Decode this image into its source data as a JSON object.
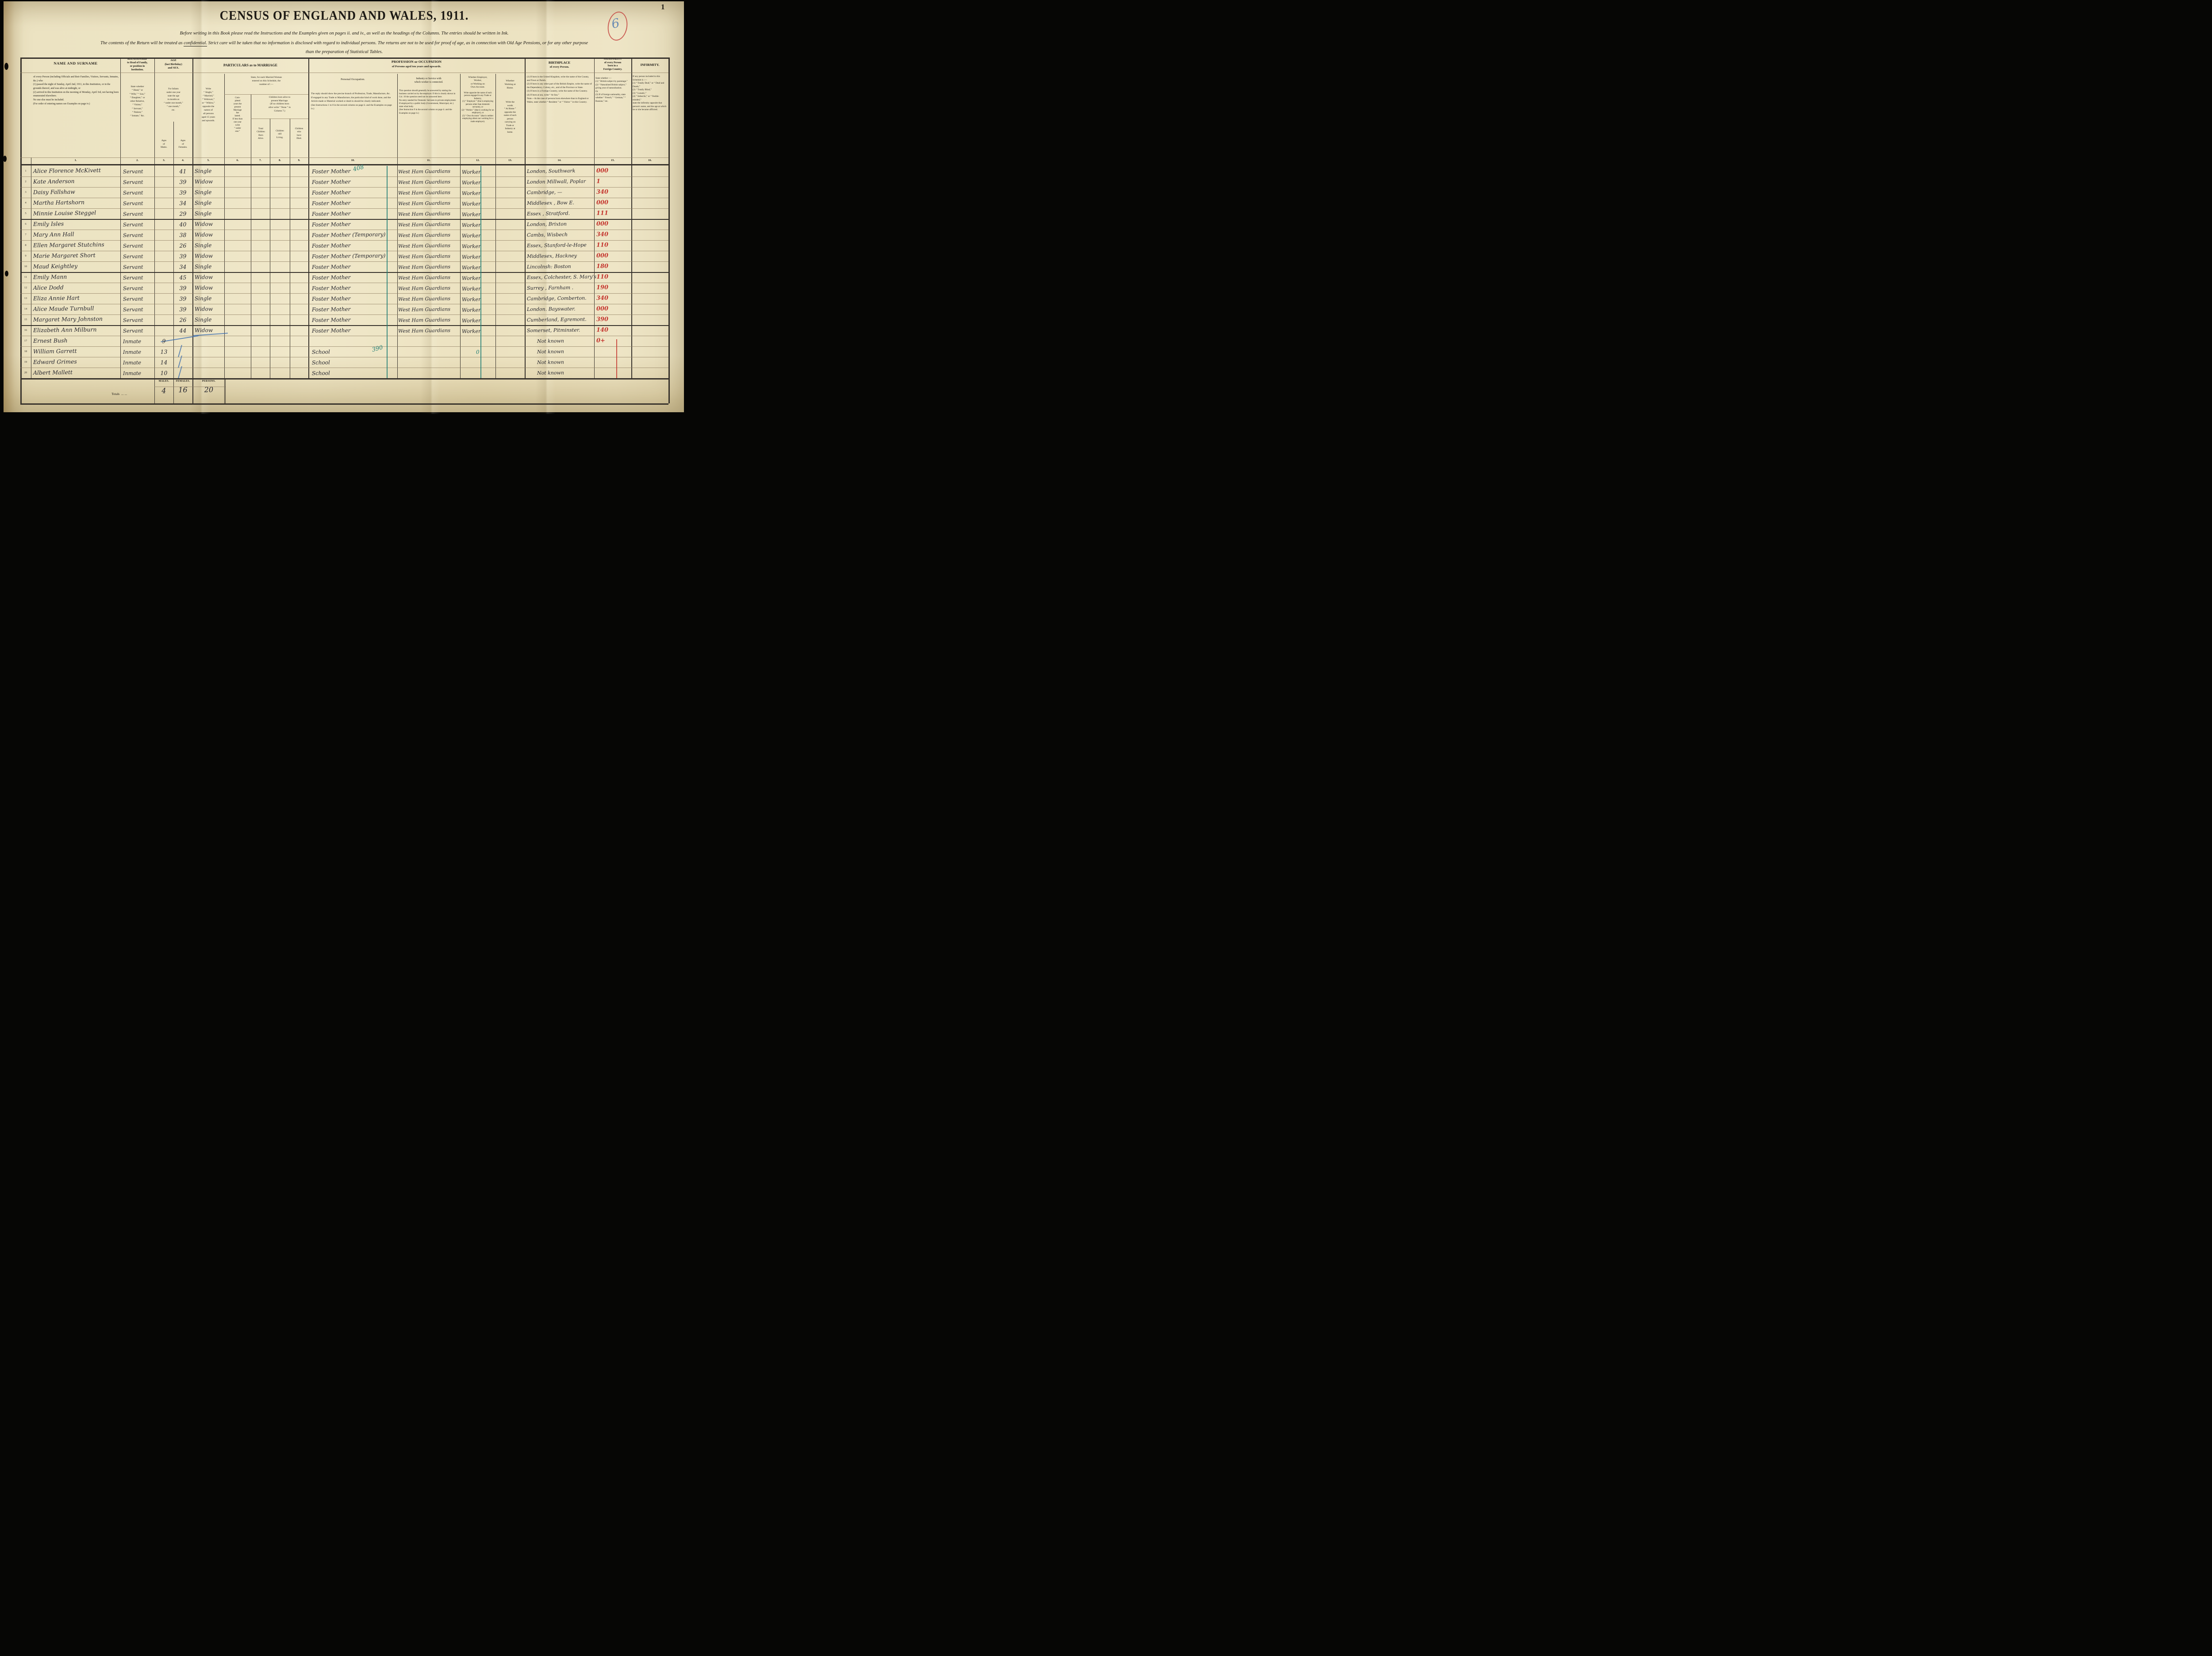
{
  "page": {
    "number": "1"
  },
  "title": "CENSUS  OF  ENGLAND  AND  WALES,  1911.",
  "instructions": {
    "line1": "Before writing in this Book please read the Instructions and the Examples given on pages ii. and iv., as well as the headings of the Columns.   The entries should be written in Ink.",
    "line2_pre": "The contents of the Return will be treated as ",
    "line2_confidential": "confidential.",
    "line2_post": "  Strict care will be taken that no information is disclosed with regard to individual persons.   The returns are not to be used for proof of age, as in connection with Old Age Pensions, or for any other purpose",
    "line3": "than the preparation of Statistical Tables."
  },
  "stamp": {
    "value": "6"
  },
  "colors": {
    "red_ink": "#c4352e",
    "green_ink": "#1f7e74",
    "blue_ink": "#3f6fae",
    "black_ink": "#26262e"
  },
  "header": {
    "c1": {
      "title": "NAME AND SURNAME",
      "body": "of every Person (including Officials and their Families, Visitors, Servants, Inmates, &c.) who\n(1) passed the night of Sunday, April 2nd, 1911, in this Institution, or in the grounds thereof, and was alive at midnight, or\n(2) arrived in this Institution on the morning of Monday, April 3rd, not having been enumerated elsewhere.\nNo one else must be included.\n(For order of entering names see Examples on page iv.)"
    },
    "c2": {
      "title": "RELATIONSHIP\nto Head of Family,\nor position in\nInstitution.",
      "body": "State whether\n“ Head,” or\n“ Wife,” “ Son,”\n“ Daughter,” or\nother Relative,\n“ Visitor,”\n“ Servant,”\n“ Patient,”\n“ Inmate,” &c."
    },
    "age": {
      "title": "AGE\n(last Birthday)\nand SEX.",
      "body": "For Infants\nunder one year\nstate the age\nin months as\n“ under one month,”\n“ one month,”\netc.",
      "males": "Ages\nof\nMales.",
      "females": "Ages\nof\nFemales."
    },
    "marriage": {
      "title": "PARTICULARS as to MARRIAGE",
      "c5": "Write\n“ Single,”\n“ Married,”\n“ Widower,”\nor “ Widow,”\nopposite the\nnames of\nall persons\naged 15 years\nand upwards.",
      "group": "State, for each Married Woman\nentered on this Schedule, the\nnumber of :—",
      "c6": "Com-\npleted\nyears the\npresent\nMarriage\nhas\nlasted.\nIf less than\none year\nwrite\n“ under\none.”",
      "children": "Children born alive to\npresent Marriage.\n(If no children born\nalive write “ None ” in\nColumn 7.)",
      "c7": "Total\nChildren\nBorn\nAlive.",
      "c8": "Children\nstill\nLiving.",
      "c9": "Children\nwho\nhave\nDied."
    },
    "profession": {
      "title": "PROFESSION or OCCUPATION",
      "subtitle": "of Persons aged ten years and upwards.",
      "c10_title": "Personal Occupation.",
      "c10": "The reply should show the precise branch of Profession, Trade, Manufacture, &c.\nIf engaged in any Trade or Manufacture, the particular kind of work done, and the Article made or Material worked or dealt in should be clearly indicated.\n(See Instructions 1 to 8 in the second column on page ii. and the Examples on page iv.)",
      "c11_title": "Industry or Service with\nwhich worker is connected.",
      "c11": "This question should generally be answered by stating the business carried on by the employer.  If this is clearly shown in Col. 10 the question need not be answered here.\nNo entry needed for Domestic Servants in private employment.\nIf employed by a public body (Government, Municipal, etc.) state what body.\n(See Instruction 9 in the second column on page ii. and the Examples on page iv.)",
      "c12_title": "Whether Employer,\nWorker,\nor Working on\nOwn Account.",
      "c12": "Write opposite the name of each person engaged in any Trade or Industry,\n(1) “ Employer ” (that is employing persons other than domestic servants), or\n(2) “ Worker ” (that is working for an employer), or\n(3) “ Own Account ” (that is neither employing others nor working for a trade employer).",
      "c13_title": "Whether\nWorking at\nHome.",
      "c13": "Write the\nwords\n“ At Home ”\nopposite the\nname of each\nperson\ncarrying on\nTrade or\nIndustry at\nhome."
    },
    "birthplace": {
      "title": "BIRTHPLACE",
      "subtitle": "of every Person.",
      "body": "(1) If born in the United Kingdom, write the name of the County, and Town or Parish.\n(2) If born in any other part of the British Empire, write the name of the Dependency, Colony, etc., and of the Province or State.\n(3) If born in a Foreign Country, write the name of the Country.\n(4) If born at sea, write “ At Sea.”\nNote.—In the case of persons born elsewhere than in England or Wales, state whether “ Resident ” or “ Visitor ” in this Country."
    },
    "nationality": {
      "title": "NATIONALITY\nof every Person\nborn in a\nForeign Country.",
      "body": "State whether :—\n(1) “ British subject by parentage.”\n(2) “ Naturalised British subject,” giving year of naturalisation.\nOr\n(3) If of foreign nationality, state whether “ French,” “ German,” “ Russian,” etc."
    },
    "infirmity": {
      "title": "INFIRMITY.",
      "body": "If any person included in this Schedule is :—\n(1) “ Totally Deaf,” or “ Deaf and Dumb,”\n(2) “ Totally Blind,”\n(3) “ Lunatic,”\n(4) “ Imbecile,” or “ Feeble-minded,”\nstate the infirmity opposite that person's name, and the age at which he or she became afflicted."
    },
    "nums": [
      "1.",
      "2.",
      "3.",
      "4.",
      "5.",
      "6.",
      "7.",
      "8.",
      "9.",
      "10.",
      "11.",
      "12.",
      "13.",
      "14.",
      "15.",
      "16."
    ]
  },
  "rows": [
    {
      "n": "1",
      "name": "Alice Florence McKivett",
      "rel": "Servant",
      "m": "",
      "f": "41",
      "marr": "Single",
      "occ": "Foster Mother",
      "occ_note": "408",
      "ind": "West Ham Guardians",
      "emp": "Worker",
      "birth": "London, Southwark",
      "red": "000"
    },
    {
      "n": "2",
      "name": "Kate Anderson",
      "rel": "Servant",
      "m": "",
      "f": "39",
      "marr": "Widow",
      "occ": "Foster Mother",
      "ind": "West Ham Guardians",
      "emp": "Worker",
      "birth": "London Millwall, Poplar",
      "red": "1"
    },
    {
      "n": "3",
      "name": "Daisy Fallshaw",
      "rel": "Servant",
      "m": "",
      "f": "39",
      "marr": "Single",
      "occ": "Foster Mother",
      "ind": "West Ham Guardians",
      "emp": "Worker",
      "birth": "Cambridge,  —",
      "red": "340"
    },
    {
      "n": "4",
      "name": "Martha Hartshorn",
      "rel": "Servant",
      "m": "",
      "f": "34",
      "marr": "Single",
      "occ": "Foster Mother",
      "ind": "West Ham Guardians",
      "emp": "Worker",
      "birth": "Middlesex , Bow E.",
      "red": "000"
    },
    {
      "n": "5",
      "name": "Minnie Louise Steggel",
      "rel": "Servant",
      "m": "",
      "f": "29",
      "marr": "Single",
      "occ": "Foster Mother",
      "ind": "West Ham Guardians",
      "emp": "Worker",
      "birth": "Essex , Stratford.",
      "red": "111"
    },
    {
      "n": "6",
      "name": "Emily Isles",
      "rel": "Servant",
      "m": "",
      "f": "40",
      "marr": "Widow",
      "occ": "Foster Mother",
      "ind": "West Ham Guardians",
      "emp": "Worker",
      "birth": "London, Brixton",
      "red": "000"
    },
    {
      "n": "7",
      "name": "Mary Ann Hall",
      "rel": "Servant",
      "m": "",
      "f": "38",
      "marr": "Widow",
      "occ": "Foster Mother (Temporary)",
      "ind": "West Ham Guardians",
      "emp": "Worker",
      "birth": "Cambs, Wisbech",
      "red": "340"
    },
    {
      "n": "8",
      "name": "Ellen Margaret Stutchins",
      "rel": "Servant",
      "m": "",
      "f": "26",
      "marr": "Single",
      "occ": "Foster Mother",
      "ind": "West Ham Guardians",
      "emp": "Worker",
      "birth": "Essex, Stanford-le-Hope",
      "red": "110"
    },
    {
      "n": "9",
      "name": "Marie Margaret Short",
      "rel": "Servant",
      "m": "",
      "f": "39",
      "marr": "Widow",
      "occ": "Foster Mother (Temporary)",
      "ind": "West Ham Guardians",
      "emp": "Worker",
      "birth": "Middlesex, Hackney",
      "red": "000"
    },
    {
      "n": "10",
      "name": "Maud Keightley",
      "rel": "Servant",
      "m": "",
      "f": "34",
      "marr": "Single",
      "occ": "Foster Mother",
      "ind": "West Ham Guardians",
      "emp": "Worker",
      "birth": "Lincolnsh: Boston",
      "red": "180"
    },
    {
      "n": "11",
      "name": "Emily Mann",
      "rel": "Servant",
      "m": "",
      "f": "45",
      "marr": "Widow",
      "occ": "Foster Mother",
      "ind": "West Ham Guardians",
      "emp": "Worker",
      "birth": "Essex, Colchester, S. Mary's",
      "red": "110"
    },
    {
      "n": "12",
      "name": "Alice Dodd",
      "rel": "Servant",
      "m": "",
      "f": "39",
      "marr": "Widow",
      "occ": "Foster Mother",
      "ind": "West Ham Guardians",
      "emp": "Worker",
      "birth": "Surrey , Farnham .",
      "red": "190"
    },
    {
      "n": "13",
      "name": "Eliza Annie Hart",
      "rel": "Servant",
      "m": "",
      "f": "39",
      "marr": "Single",
      "occ": "Foster Mother",
      "ind": "West Ham Guardians",
      "emp": "Worker",
      "birth": "Cambridge, Comberton.",
      "red": "340"
    },
    {
      "n": "14",
      "name": "Alice Maude Turnbull",
      "rel": "Servant",
      "m": "",
      "f": "39",
      "marr": "Widow",
      "occ": "Foster Mother",
      "ind": "West Ham Guardians",
      "emp": "Worker",
      "birth": "London. Bayswater.",
      "red": "000"
    },
    {
      "n": "15",
      "name": "Margaret Mary Johnston",
      "rel": "Servant",
      "m": "",
      "f": "26",
      "marr": "Single",
      "occ": "Foster Mother",
      "ind": "West Ham Guardians",
      "emp": "Worker",
      "birth": "Cumberland, Egremont.",
      "red": "390"
    },
    {
      "n": "16",
      "name": "Elizabeth Ann Milburn",
      "rel": "Servant",
      "m": "",
      "f": "44",
      "marr": "Widow",
      "marr_underline": true,
      "occ": "Foster Mother",
      "ind": "West Ham Guardians",
      "emp": "Worker",
      "birth": "Somerset, Pitminster.",
      "red": "140"
    },
    {
      "n": "17",
      "name": "Ernest Bush",
      "rel": "Inmate",
      "m": "9",
      "f": "",
      "marr": "",
      "occ": "",
      "ind": "",
      "emp": "",
      "birth": "Not known",
      "red": "0+"
    },
    {
      "n": "18",
      "name": "William Garrett",
      "rel": "Inmate",
      "m": "13",
      "f": "",
      "marr": "",
      "slash": true,
      "occ": "School",
      "occ_note": "390",
      "emp_note": "0",
      "ind": "",
      "emp": "",
      "birth": "Not known"
    },
    {
      "n": "19",
      "name": "Edward Grimes",
      "rel": "Inmate",
      "m": "14",
      "f": "",
      "marr": "",
      "slash": true,
      "occ": "School",
      "ind": "",
      "emp": "",
      "birth": "Not known"
    },
    {
      "n": "20",
      "name": "Albert Mallett",
      "rel": "Inmate",
      "m": "10",
      "f": "",
      "marr": "",
      "slash": true,
      "occ": "School",
      "ind": "",
      "emp": "",
      "birth": "Not known"
    }
  ],
  "totals": {
    "label": "Totals",
    "dots": "...      ...",
    "males_label": "Males.",
    "females_label": "Females.",
    "persons_label": "Persons.",
    "males": "4",
    "females": "16",
    "persons": "20"
  }
}
